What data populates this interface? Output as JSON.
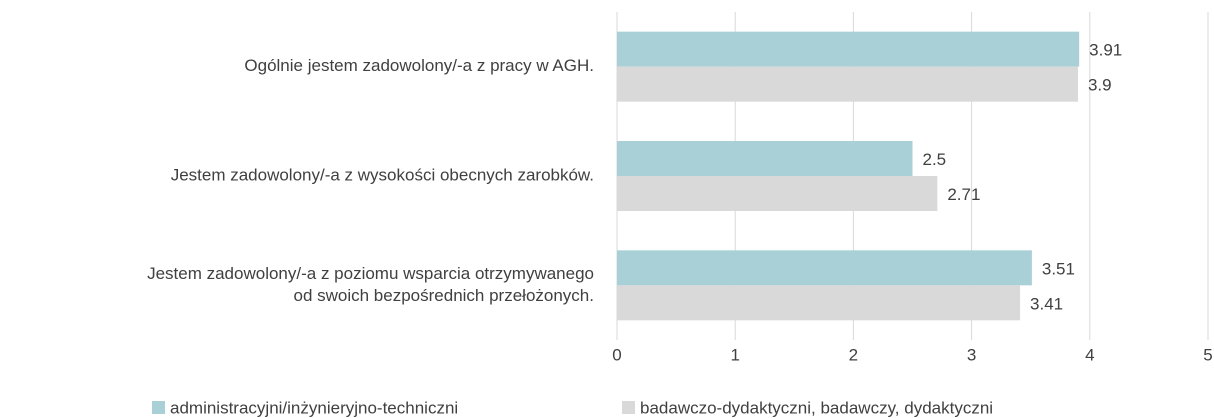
{
  "chart_data": {
    "type": "bar",
    "orientation": "horizontal",
    "categories": [
      [
        "Ogólnie jestem zadowolony/-a z pracy w AGH."
      ],
      [
        "Jestem zadowolony/-a z wysokości obecnych zarobków."
      ],
      [
        "Jestem zadowolony/-a z poziomu wsparcia otrzymywanego",
        "od swoich bezpośrednich przełożonych."
      ]
    ],
    "series": [
      {
        "name": "administracyjni/inżynieryjno-techniczni",
        "color": "#a9cfd7",
        "values": [
          3.91,
          2.5,
          3.51
        ]
      },
      {
        "name": "badawczo-dydaktyczni, badawczy, dydaktyczni",
        "color": "#d9d9d9",
        "values": [
          3.9,
          2.71,
          3.41
        ]
      }
    ],
    "xlim": [
      0,
      5
    ],
    "xticks": [
      0,
      1,
      2,
      3,
      4,
      5
    ],
    "grid": true,
    "legend": "bottom"
  }
}
